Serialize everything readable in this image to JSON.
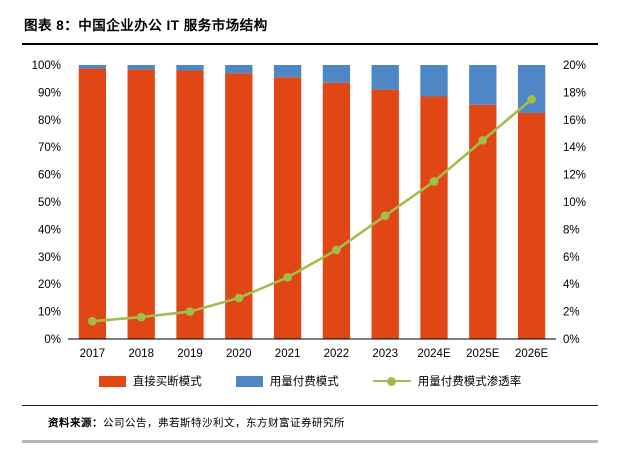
{
  "header": {
    "title": "图表 8：中国企业办公 IT 服务市场结构"
  },
  "footer": {
    "source_label": "资料来源：",
    "source_body": "公司公告，弗若斯特沙利文，东方财富证券研究所"
  },
  "chart_data": {
    "type": "bar",
    "stacked": true,
    "grid": false,
    "legend_position": "bottom",
    "categories": [
      "2017",
      "2018",
      "2019",
      "2020",
      "2021",
      "2022",
      "2023",
      "2024E",
      "2025E",
      "2026E"
    ],
    "series": [
      {
        "name": "直接买断模式",
        "type": "bar",
        "axis": "left",
        "color": "#e04714",
        "values": [
          98.7,
          98.4,
          98.0,
          97.0,
          95.5,
          93.5,
          91.0,
          88.5,
          85.5,
          82.5
        ]
      },
      {
        "name": "用量付费模式",
        "type": "bar",
        "axis": "left",
        "color": "#4e86c6",
        "values": [
          1.3,
          1.6,
          2.0,
          3.0,
          4.5,
          6.5,
          9.0,
          11.5,
          14.5,
          17.5
        ]
      },
      {
        "name": "用量付费模式渗透率",
        "type": "line",
        "axis": "right",
        "color": "#a2be4a",
        "values": [
          1.3,
          1.6,
          2.0,
          3.0,
          4.5,
          6.5,
          9.0,
          11.5,
          14.5,
          17.5
        ]
      }
    ],
    "left_axis": {
      "min": 0,
      "max": 100,
      "step": 10,
      "suffix": "%"
    },
    "right_axis": {
      "min": 0,
      "max": 20,
      "step": 2,
      "suffix": "%"
    }
  }
}
